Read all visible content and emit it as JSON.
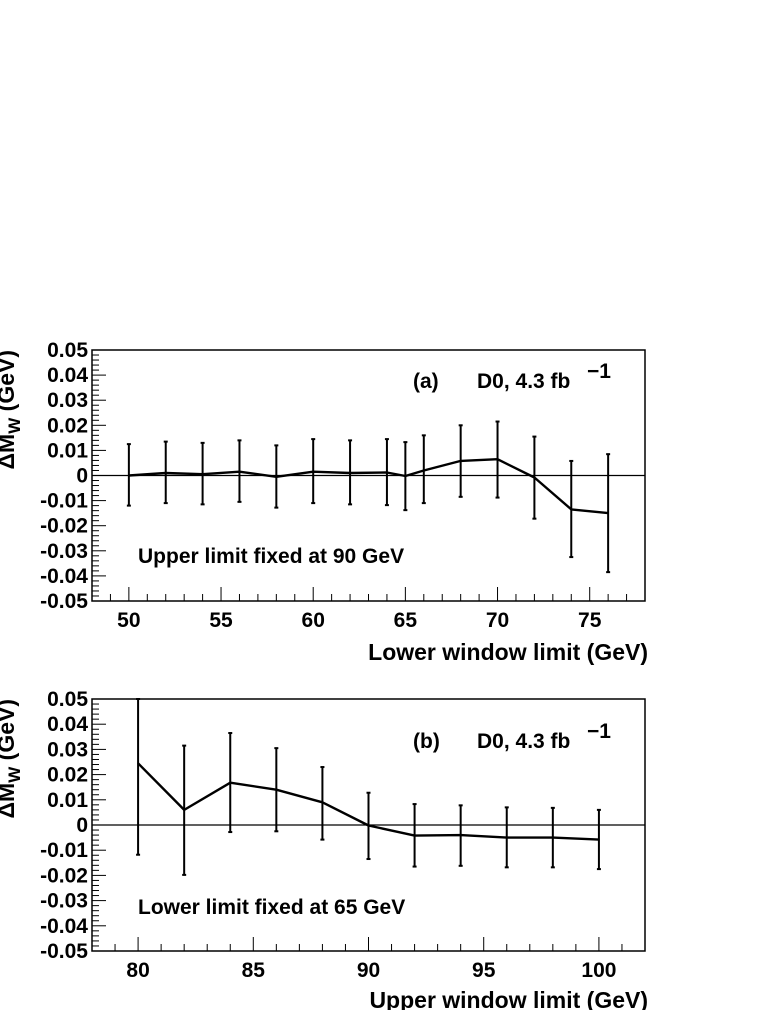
{
  "chart_data": [
    {
      "type": "line",
      "panel_label": "(a)",
      "experiment": "D0, 4.3 fb",
      "experiment_sup": "−1",
      "annotation": "Upper limit fixed at 90 GeV",
      "xlabel": "Lower window limit (GeV)",
      "ylabel_prefix": "ΔM",
      "ylabel_sub": "W",
      "ylabel_suffix": " (GeV)",
      "xlim": [
        48,
        78
      ],
      "ylim": [
        -0.05,
        0.05
      ],
      "xticks": [
        50,
        55,
        60,
        65,
        70,
        75
      ],
      "yticks": [
        0.05,
        0.04,
        0.03,
        0.02,
        0.01,
        0,
        -0.01,
        -0.02,
        -0.03,
        -0.04,
        -0.05
      ],
      "ytick_labels": [
        "0.05",
        "0.04",
        "0.03",
        "0.02",
        "0.01",
        "0",
        "-0.01",
        "-0.02",
        "-0.03",
        "-0.04",
        "-0.05"
      ],
      "series": [
        {
          "x": [
            50,
            52,
            54,
            56,
            58,
            60,
            62,
            64,
            65,
            66,
            68,
            70,
            72,
            74,
            76
          ],
          "y": [
            0.0,
            0.001,
            0.0005,
            0.0015,
            -0.0005,
            0.0015,
            0.001,
            0.0012,
            -0.0002,
            0.002,
            0.0058,
            0.0065,
            -0.0008,
            -0.0135,
            -0.015
          ],
          "err_low": [
            -0.012,
            -0.011,
            -0.0115,
            -0.0105,
            -0.0128,
            -0.011,
            -0.0115,
            -0.0118,
            -0.0138,
            -0.011,
            -0.0085,
            -0.0088,
            -0.0172,
            -0.0325,
            -0.0385
          ],
          "err_high": [
            0.0125,
            0.0135,
            0.013,
            0.014,
            0.012,
            0.0145,
            0.014,
            0.0145,
            0.0133,
            0.016,
            0.02,
            0.0215,
            0.0155,
            0.0058,
            0.0085
          ]
        }
      ]
    },
    {
      "type": "line",
      "panel_label": "(b)",
      "experiment": "D0, 4.3 fb",
      "experiment_sup": "−1",
      "annotation": "Lower limit fixed at 65 GeV",
      "xlabel": "Upper window limit (GeV)",
      "ylabel_prefix": "ΔM",
      "ylabel_sub": "W",
      "ylabel_suffix": " (GeV)",
      "xlim": [
        78,
        102
      ],
      "ylim": [
        -0.05,
        0.05
      ],
      "xticks": [
        80,
        85,
        90,
        95,
        100
      ],
      "yticks": [
        0.05,
        0.04,
        0.03,
        0.02,
        0.01,
        0,
        -0.01,
        -0.02,
        -0.03,
        -0.04,
        -0.05
      ],
      "ytick_labels": [
        "0.05",
        "0.04",
        "0.03",
        "0.02",
        "0.01",
        "0",
        "-0.01",
        "-0.02",
        "-0.03",
        "-0.04",
        "-0.05"
      ],
      "series": [
        {
          "x": [
            80,
            82,
            84,
            86,
            88,
            90,
            92,
            94,
            96,
            98,
            100
          ],
          "y": [
            0.0245,
            0.006,
            0.0168,
            0.014,
            0.009,
            -0.0002,
            -0.0042,
            -0.004,
            -0.005,
            -0.005,
            -0.0058
          ],
          "err_low": [
            -0.0118,
            -0.0198,
            -0.0028,
            -0.0025,
            -0.0058,
            -0.0135,
            -0.0165,
            -0.0162,
            -0.0168,
            -0.0168,
            -0.0175
          ],
          "err_high": [
            0.05,
            0.0315,
            0.0365,
            0.0305,
            0.023,
            0.0128,
            0.0083,
            0.0078,
            0.007,
            0.0068,
            0.006
          ]
        }
      ]
    }
  ]
}
